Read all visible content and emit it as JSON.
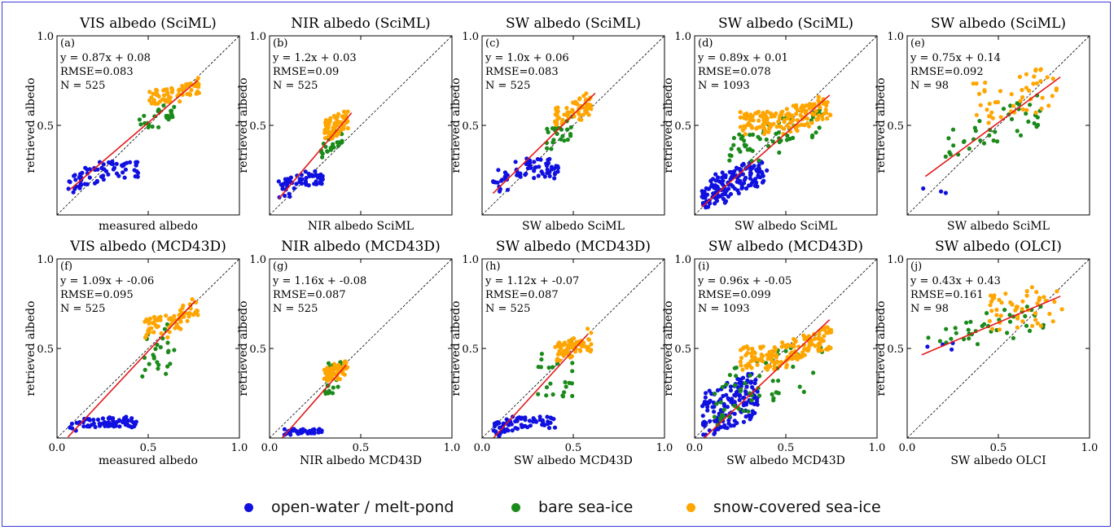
{
  "figure": {
    "colors": {
      "frame": "#3a3ad6",
      "fit_line": "#e41a1c",
      "one_to_one": "#000000"
    }
  },
  "legend": [
    {
      "label": "open-water / melt-pond",
      "color": "#1010e0"
    },
    {
      "label": "bare sea-ice",
      "color": "#1a8a1a"
    },
    {
      "label": "snow-covered sea-ice",
      "color": "#ffa500"
    }
  ],
  "chart_data": [
    {
      "type": "scatter",
      "panel": "(a)",
      "title": "VIS albedo (SciML)",
      "xlabel": "measured albedo",
      "ylabel": "retrieved albedo",
      "xlim": [
        0,
        1
      ],
      "ylim": [
        0,
        1
      ],
      "fit": {
        "slope": 0.87,
        "intercept": 0.08,
        "x_range": [
          0.07,
          0.77
        ]
      },
      "stats": {
        "equation": "y = 0.87x + 0.08",
        "rmse": "RMSE=0.083",
        "n": "N = 525"
      },
      "clusters": [
        {
          "class": "open-water / melt-pond",
          "region": [
            0.06,
            0.45,
            0.12,
            0.3
          ],
          "count": 70
        },
        {
          "class": "bare sea-ice",
          "region": [
            0.45,
            0.65,
            0.42,
            0.65
          ],
          "count": 25
        },
        {
          "class": "snow-covered sea-ice",
          "region": [
            0.5,
            0.78,
            0.62,
            0.77
          ],
          "count": 70
        }
      ]
    },
    {
      "type": "scatter",
      "panel": "(b)",
      "title": "NIR albedo (SciML)",
      "xlabel": "NIR albedo SciML",
      "ylabel": "retrieved albedo",
      "xlim": [
        0,
        1
      ],
      "ylim": [
        0,
        1
      ],
      "fit": {
        "slope": 1.2,
        "intercept": 0.03,
        "x_range": [
          0.05,
          0.45
        ]
      },
      "stats": {
        "equation": "y = 1.2x + 0.03",
        "rmse": "RMSE=0.09",
        "n": "N = 525"
      },
      "clusters": [
        {
          "class": "open-water / melt-pond",
          "region": [
            0.05,
            0.3,
            0.08,
            0.25
          ],
          "count": 60
        },
        {
          "class": "bare sea-ice",
          "region": [
            0.28,
            0.4,
            0.3,
            0.48
          ],
          "count": 25
        },
        {
          "class": "snow-covered sea-ice",
          "region": [
            0.3,
            0.43,
            0.42,
            0.62
          ],
          "count": 70
        }
      ]
    },
    {
      "type": "scatter",
      "panel": "(c)",
      "title": "SW albedo (SciML)",
      "xlabel": "SW albedo SciML",
      "ylabel": "retrieved albedo",
      "xlim": [
        0,
        1
      ],
      "ylim": [
        0,
        1
      ],
      "fit": {
        "slope": 1.0,
        "intercept": 0.06,
        "x_range": [
          0.06,
          0.62
        ]
      },
      "stats": {
        "equation": "y = 1.0x + 0.06",
        "rmse": "RMSE=0.083",
        "n": "N = 525"
      },
      "clusters": [
        {
          "class": "open-water / melt-pond",
          "region": [
            0.06,
            0.42,
            0.1,
            0.32
          ],
          "count": 70
        },
        {
          "class": "bare sea-ice",
          "region": [
            0.35,
            0.5,
            0.32,
            0.55
          ],
          "count": 25
        },
        {
          "class": "snow-covered sea-ice",
          "region": [
            0.4,
            0.6,
            0.5,
            0.69
          ],
          "count": 70
        }
      ]
    },
    {
      "type": "scatter",
      "panel": "(d)",
      "title": "SW albedo (SciML)",
      "xlabel": "SW albedo SciML",
      "ylabel": "retrieved albedo",
      "xlim": [
        0,
        1
      ],
      "ylim": [
        0,
        1
      ],
      "fit": {
        "slope": 0.89,
        "intercept": 0.01,
        "x_range": [
          0.04,
          0.74
        ]
      },
      "stats": {
        "equation": "y = 0.89x + 0.01",
        "rmse": "RMSE=0.078",
        "n": "N = 1093"
      },
      "clusters": [
        {
          "class": "open-water / melt-pond",
          "region": [
            0.04,
            0.4,
            0.02,
            0.3
          ],
          "count": 150
        },
        {
          "class": "bare sea-ice",
          "region": [
            0.15,
            0.7,
            0.3,
            0.62
          ],
          "count": 60
        },
        {
          "class": "snow-covered sea-ice",
          "region": [
            0.25,
            0.75,
            0.45,
            0.68
          ],
          "count": 160
        }
      ]
    },
    {
      "type": "scatter",
      "panel": "(e)",
      "title": "SW albedo (SciML)",
      "xlabel": "SW albedo SciML",
      "ylabel": "retrieved albedo",
      "xlim": [
        0,
        1
      ],
      "ylim": [
        0,
        1
      ],
      "fit": {
        "slope": 0.75,
        "intercept": 0.14,
        "x_range": [
          0.1,
          0.84
        ]
      },
      "stats": {
        "equation": "y = 0.75x + 0.14",
        "rmse": "RMSE=0.092",
        "n": "N = 98"
      },
      "clusters": [
        {
          "class": "open-water / melt-pond",
          "region": [
            0.08,
            0.25,
            0.03,
            0.2
          ],
          "count": 3
        },
        {
          "class": "bare sea-ice",
          "region": [
            0.2,
            0.75,
            0.32,
            0.68
          ],
          "count": 40
        },
        {
          "class": "snow-covered sea-ice",
          "region": [
            0.35,
            0.85,
            0.5,
            0.94
          ],
          "count": 50
        }
      ]
    },
    {
      "type": "scatter",
      "panel": "(f)",
      "title": "VIS albedo (MCD43D)",
      "xlabel": "measured albedo",
      "ylabel": "retrieved albedo",
      "xlim": [
        0,
        1
      ],
      "ylim": [
        0,
        1
      ],
      "fit": {
        "slope": 1.09,
        "intercept": -0.06,
        "x_range": [
          0.06,
          0.76
        ]
      },
      "stats": {
        "equation": "y = 1.09x + -0.06",
        "rmse": "RMSE=0.095",
        "n": "N = 525"
      },
      "clusters": [
        {
          "class": "open-water / melt-pond",
          "region": [
            0.07,
            0.45,
            0.01,
            0.12
          ],
          "count": 70
        },
        {
          "class": "bare sea-ice",
          "region": [
            0.45,
            0.65,
            0.1,
            0.7
          ],
          "count": 25
        },
        {
          "class": "snow-covered sea-ice",
          "region": [
            0.48,
            0.78,
            0.55,
            0.78
          ],
          "count": 70
        }
      ]
    },
    {
      "type": "scatter",
      "panel": "(g)",
      "title": "NIR albedo (MCD43D)",
      "xlabel": "NIR albedo MCD43D",
      "ylabel": "retrieved albedo",
      "xlim": [
        0,
        1
      ],
      "ylim": [
        0,
        1
      ],
      "fit": {
        "slope": 1.16,
        "intercept": -0.08,
        "x_range": [
          0.07,
          0.42
        ]
      },
      "stats": {
        "equation": "y = 1.16x + -0.08",
        "rmse": "RMSE=0.087",
        "n": "N = 525"
      },
      "clusters": [
        {
          "class": "open-water / melt-pond",
          "region": [
            0.08,
            0.3,
            0.0,
            0.05
          ],
          "count": 50
        },
        {
          "class": "bare sea-ice",
          "region": [
            0.3,
            0.4,
            0.2,
            0.5
          ],
          "count": 25
        },
        {
          "class": "snow-covered sea-ice",
          "region": [
            0.3,
            0.43,
            0.32,
            0.45
          ],
          "count": 70
        }
      ]
    },
    {
      "type": "scatter",
      "panel": "(h)",
      "title": "SW albedo (MCD43D)",
      "xlabel": "SW albedo MCD43D",
      "ylabel": "retrieved albedo",
      "xlim": [
        0,
        1
      ],
      "ylim": [
        0,
        1
      ],
      "fit": {
        "slope": 1.12,
        "intercept": -0.07,
        "x_range": [
          0.05,
          0.58
        ]
      },
      "stats": {
        "equation": "y = 1.12x + -0.07",
        "rmse": "RMSE=0.087",
        "n": "N = 525"
      },
      "clusters": [
        {
          "class": "open-water / melt-pond",
          "region": [
            0.05,
            0.4,
            0.0,
            0.12
          ],
          "count": 70
        },
        {
          "class": "bare sea-ice",
          "region": [
            0.3,
            0.5,
            0.05,
            0.62
          ],
          "count": 25
        },
        {
          "class": "snow-covered sea-ice",
          "region": [
            0.4,
            0.6,
            0.42,
            0.62
          ],
          "count": 70
        }
      ]
    },
    {
      "type": "scatter",
      "panel": "(i)",
      "title": "SW albedo (MCD43D)",
      "xlabel": "SW albedo MCD43D",
      "ylabel": "retrieved albedo",
      "xlim": [
        0,
        1
      ],
      "ylim": [
        0,
        1
      ],
      "fit": {
        "slope": 0.96,
        "intercept": -0.05,
        "x_range": [
          0.05,
          0.74
        ]
      },
      "stats": {
        "equation": "y = 0.96x + -0.05",
        "rmse": "RMSE=0.099",
        "n": "N = 1093"
      },
      "clusters": [
        {
          "class": "open-water / melt-pond",
          "region": [
            0.04,
            0.35,
            0.0,
            0.45
          ],
          "count": 150
        },
        {
          "class": "bare sea-ice",
          "region": [
            0.1,
            0.7,
            0.05,
            0.58
          ],
          "count": 60
        },
        {
          "class": "snow-covered sea-ice",
          "region": [
            0.25,
            0.75,
            0.38,
            0.62
          ],
          "count": 160
        }
      ]
    },
    {
      "type": "scatter",
      "panel": "(j)",
      "title": "SW albedo (OLCI)",
      "xlabel": "SW albedo OLCI",
      "ylabel": "retrieved albedo",
      "xlim": [
        0,
        1
      ],
      "ylim": [
        0,
        1
      ],
      "fit": {
        "slope": 0.43,
        "intercept": 0.43,
        "x_range": [
          0.08,
          0.84
        ]
      },
      "stats": {
        "equation": "y = 0.43x + 0.43",
        "rmse": "RMSE=0.161",
        "n": "N = 98"
      },
      "clusters": [
        {
          "class": "open-water / melt-pond",
          "region": [
            0.08,
            0.25,
            0.45,
            0.6
          ],
          "count": 4
        },
        {
          "class": "bare sea-ice",
          "region": [
            0.08,
            0.75,
            0.45,
            0.78
          ],
          "count": 40
        },
        {
          "class": "snow-covered sea-ice",
          "region": [
            0.45,
            0.85,
            0.55,
            0.94
          ],
          "count": 50
        }
      ]
    }
  ]
}
